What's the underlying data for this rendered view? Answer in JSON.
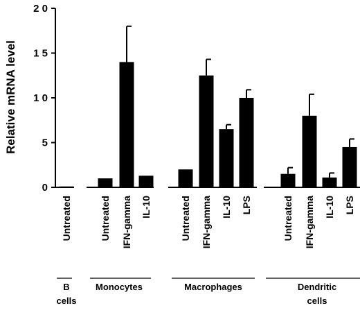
{
  "chart_data": {
    "type": "bar",
    "ylabel": "Relative mRNA level",
    "ylim": [
      0,
      20
    ],
    "yticks": [
      {
        "value": 0,
        "label": "0"
      },
      {
        "value": 5,
        "label": "5"
      },
      {
        "value": 10,
        "label": "1 0"
      },
      {
        "value": 15,
        "label": "1 5"
      },
      {
        "value": 20,
        "label": "2 0"
      }
    ],
    "color": "#000000",
    "grid": false,
    "groups": [
      {
        "label_lines": [
          "B",
          "cells"
        ],
        "bars": [
          {
            "category": "Untreated",
            "value": 0.1,
            "error": 0
          }
        ]
      },
      {
        "label_lines": [
          "Monocytes"
        ],
        "bars": [
          {
            "category": "Untreated",
            "value": 1.0,
            "error": 0
          },
          {
            "category": "IFN-gamma",
            "value": 14.0,
            "error": 4.0
          },
          {
            "category": "IL-10",
            "value": 1.3,
            "error": 0
          }
        ]
      },
      {
        "label_lines": [
          "Macrophages"
        ],
        "bars": [
          {
            "category": "Untreated",
            "value": 2.0,
            "error": 0
          },
          {
            "category": "IFN-gamma",
            "value": 12.5,
            "error": 1.8
          },
          {
            "category": "IL-10",
            "value": 6.5,
            "error": 0.5
          },
          {
            "category": "LPS",
            "value": 10.0,
            "error": 0.9
          }
        ]
      },
      {
        "label_lines": [
          "Dendritic",
          "cells"
        ],
        "bars": [
          {
            "category": "Untreated",
            "value": 1.5,
            "error": 0.7
          },
          {
            "category": "IFN-gamma",
            "value": 8.0,
            "error": 2.4
          },
          {
            "category": "IL-10",
            "value": 1.1,
            "error": 0.5
          },
          {
            "category": "LPS",
            "value": 4.5,
            "error": 0.9
          }
        ]
      }
    ]
  }
}
